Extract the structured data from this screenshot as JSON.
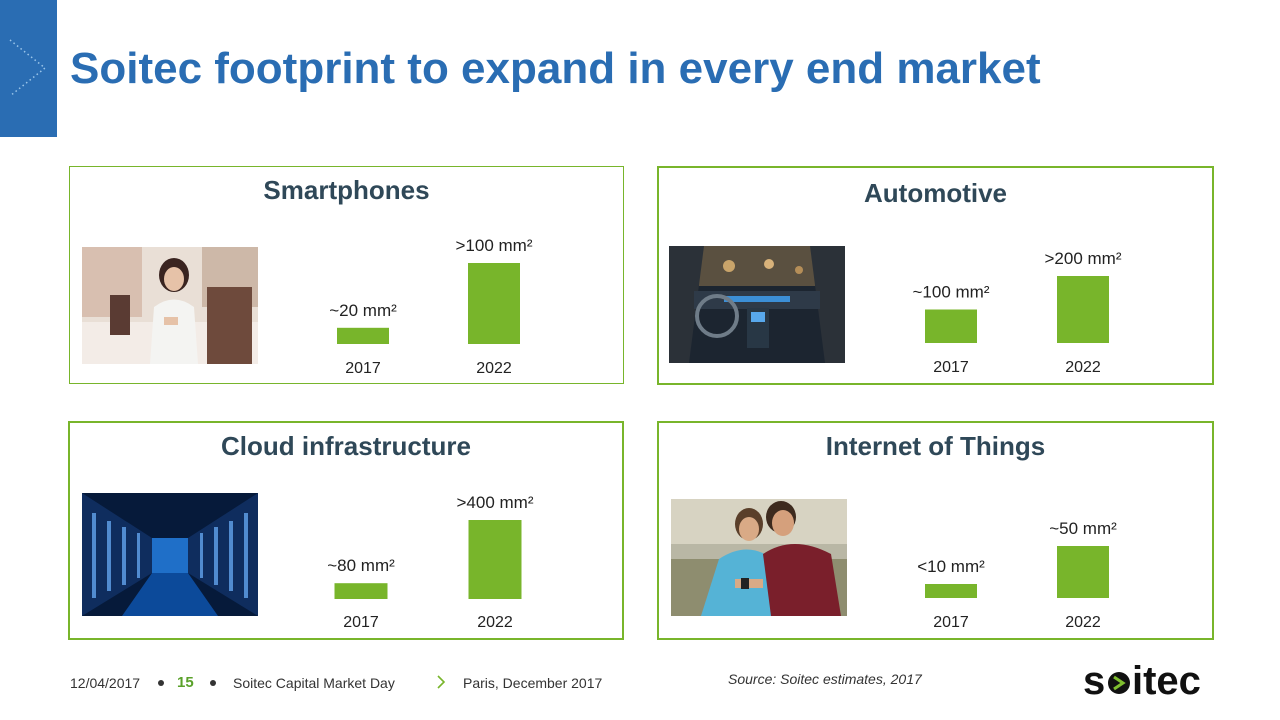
{
  "title": "Soitec footprint to expand in every end market",
  "colors": {
    "accent": "#2a6db3",
    "bar": "#78b52b",
    "panel_border": "#78b52b",
    "heading": "#2f4858"
  },
  "chart_data": [
    {
      "type": "bar",
      "title": "Smartphones",
      "categories": [
        "2017",
        "2022"
      ],
      "values": [
        20,
        100
      ],
      "labels": [
        "~20 mm²",
        ">100 mm²"
      ],
      "unit": "mm²"
    },
    {
      "type": "bar",
      "title": "Automotive",
      "categories": [
        "2017",
        "2022"
      ],
      "values": [
        100,
        200
      ],
      "labels": [
        "~100 mm²",
        ">200 mm²"
      ],
      "unit": "mm²"
    },
    {
      "type": "bar",
      "title": "Cloud infrastructure",
      "categories": [
        "2017",
        "2022"
      ],
      "values": [
        80,
        400
      ],
      "labels": [
        "~80 mm²",
        ">400 mm²"
      ],
      "unit": "mm²"
    },
    {
      "type": "bar",
      "title": "Internet of Things",
      "categories": [
        "2017",
        "2022"
      ],
      "values": [
        10,
        50
      ],
      "labels": [
        "<10 mm²",
        "~50 mm²"
      ],
      "unit": "mm²"
    }
  ],
  "footer": {
    "date": "12/04/2017",
    "page": "15",
    "event": "Soitec Capital Market Day",
    "location": "Paris, December 2017",
    "source": "Source: Soitec estimates, 2017",
    "logo_text": "soitec"
  }
}
